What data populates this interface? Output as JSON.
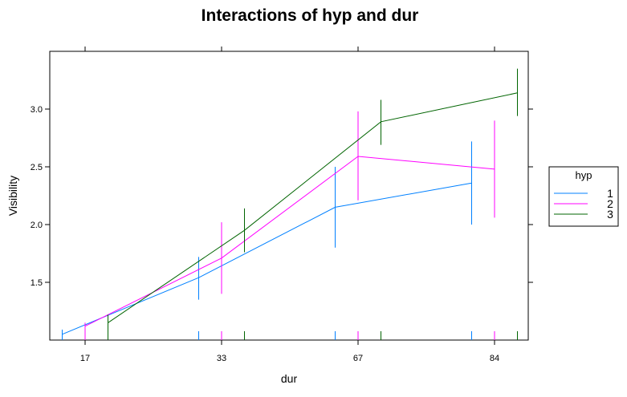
{
  "chart_data": {
    "type": "line",
    "title": "Interactions of hyp and dur",
    "xlabel": "dur",
    "ylabel": "Visibility",
    "x_ticks": [
      "17",
      "33",
      "67",
      "84"
    ],
    "y_ticks": [
      "1.5",
      "2.0",
      "2.5",
      "3.0"
    ],
    "ylim": [
      1.0,
      3.5
    ],
    "grid": false,
    "legend": {
      "title": "hyp",
      "placement": "right"
    },
    "series": [
      {
        "name": "1",
        "color": "#0080ff",
        "points": [
          {
            "pos": 1,
            "offset": -1,
            "y": 1.05,
            "lo": 1.0,
            "hi": 1.09
          },
          {
            "pos": 2,
            "offset": -1,
            "y": 1.54,
            "lo": 1.35,
            "hi": 1.72
          },
          {
            "pos": 3,
            "offset": -1,
            "y": 2.15,
            "lo": 1.8,
            "hi": 2.5
          },
          {
            "pos": 4,
            "offset": -1,
            "y": 2.36,
            "lo": 2.0,
            "hi": 2.72
          }
        ]
      },
      {
        "name": "2",
        "color": "#ff00ff",
        "points": [
          {
            "pos": 1,
            "offset": 0,
            "y": 1.12,
            "lo": 1.0,
            "hi": 1.15
          },
          {
            "pos": 2,
            "offset": 0,
            "y": 1.71,
            "lo": 1.4,
            "hi": 2.02
          },
          {
            "pos": 3,
            "offset": 0,
            "y": 2.59,
            "lo": 2.21,
            "hi": 2.98
          },
          {
            "pos": 4,
            "offset": 0,
            "y": 2.48,
            "lo": 2.06,
            "hi": 2.9
          }
        ]
      },
      {
        "name": "3",
        "color": "#006400",
        "points": [
          {
            "pos": 1,
            "offset": 1,
            "y": 1.15,
            "lo": 1.0,
            "hi": 1.22
          },
          {
            "pos": 2,
            "offset": 1,
            "y": 1.95,
            "lo": 1.76,
            "hi": 2.14
          },
          {
            "pos": 3,
            "offset": 1,
            "y": 2.89,
            "lo": 2.69,
            "hi": 3.08
          },
          {
            "pos": 4,
            "offset": 1,
            "y": 3.14,
            "lo": 2.94,
            "hi": 3.35
          }
        ]
      }
    ]
  }
}
